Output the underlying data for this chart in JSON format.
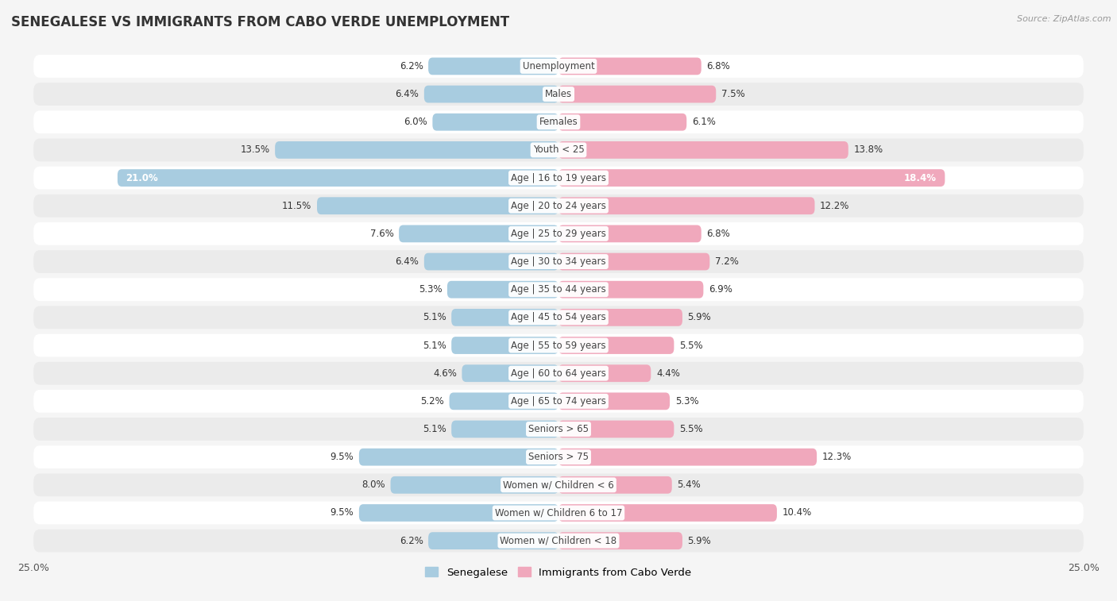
{
  "title": "SENEGALESE VS IMMIGRANTS FROM CABO VERDE UNEMPLOYMENT",
  "source": "Source: ZipAtlas.com",
  "categories": [
    "Unemployment",
    "Males",
    "Females",
    "Youth < 25",
    "Age | 16 to 19 years",
    "Age | 20 to 24 years",
    "Age | 25 to 29 years",
    "Age | 30 to 34 years",
    "Age | 35 to 44 years",
    "Age | 45 to 54 years",
    "Age | 55 to 59 years",
    "Age | 60 to 64 years",
    "Age | 65 to 74 years",
    "Seniors > 65",
    "Seniors > 75",
    "Women w/ Children < 6",
    "Women w/ Children 6 to 17",
    "Women w/ Children < 18"
  ],
  "senegalese": [
    6.2,
    6.4,
    6.0,
    13.5,
    21.0,
    11.5,
    7.6,
    6.4,
    5.3,
    5.1,
    5.1,
    4.6,
    5.2,
    5.1,
    9.5,
    8.0,
    9.5,
    6.2
  ],
  "cabo_verde": [
    6.8,
    7.5,
    6.1,
    13.8,
    18.4,
    12.2,
    6.8,
    7.2,
    6.9,
    5.9,
    5.5,
    4.4,
    5.3,
    5.5,
    12.3,
    5.4,
    10.4,
    5.9
  ],
  "color_senegalese": "#a8cce0",
  "color_cabo_verde": "#f0a8bc",
  "color_senegalese_strong": "#5b9dc9",
  "color_cabo_verde_strong": "#e8607a",
  "bg_light": "#f5f5f5",
  "bg_dark": "#e8e8e8",
  "row_bg_light": "#f0f0f0",
  "row_bg_dark": "#e2e2e2",
  "xlim": 25.0,
  "label_fontsize": 8.5,
  "title_fontsize": 12,
  "source_fontsize": 8,
  "legend_fontsize": 9.5,
  "legend_senegalese": "Senegalese",
  "legend_cabo_verde": "Immigrants from Cabo Verde"
}
